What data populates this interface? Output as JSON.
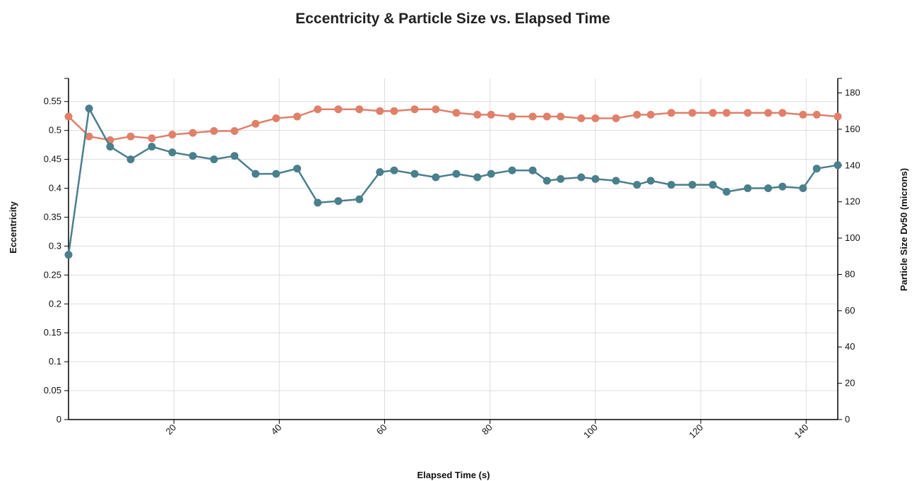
{
  "chart_data": {
    "type": "line",
    "title": "Eccentricity & Particle Size vs. Elapsed Time",
    "xlabel": "Elapsed Time (s)",
    "ylabel_left": "Eccentricity",
    "ylabel_right": "Particle Size Dv50 (microns)",
    "xlim": [
      0,
      146
    ],
    "ylim_left": [
      0,
      0.59
    ],
    "ylim_right": [
      0,
      188
    ],
    "x_ticks": [
      20,
      40,
      60,
      80,
      100,
      120,
      140
    ],
    "x_tick_labels": [
      "20",
      "40",
      "60",
      "80",
      "100",
      "120",
      "140"
    ],
    "y_left_ticks": [
      0,
      0.05,
      0.1,
      0.15,
      0.2,
      0.25,
      0.3,
      0.35,
      0.4,
      0.45,
      0.5,
      0.55
    ],
    "y_left_tick_labels": [
      "0",
      "0.05",
      "0.1",
      "0.15",
      "0.2",
      "0.25",
      "0.3",
      "0.35",
      "0.4",
      "0.45",
      "0.5",
      "0.55"
    ],
    "y_right_ticks": [
      0,
      20,
      40,
      60,
      80,
      100,
      120,
      140,
      160,
      180
    ],
    "y_right_tick_labels": [
      "0",
      "20",
      "40",
      "60",
      "80",
      "100",
      "120",
      "140",
      "160",
      "180"
    ],
    "grid": true,
    "series": [
      {
        "axis": "left",
        "color": "#4a7f8c",
        "x": [
          0,
          3.9,
          7.9,
          11.8,
          15.8,
          19.7,
          23.6,
          27.6,
          31.5,
          35.5,
          39.4,
          43.4,
          47.3,
          51.2,
          55.2,
          59.1,
          61.8,
          65.7,
          69.7,
          73.6,
          77.6,
          80.2,
          84.2,
          88.1,
          90.8,
          93.4,
          97.3,
          100.0,
          103.9,
          107.9,
          110.5,
          114.4,
          118.4,
          122.3,
          124.9,
          128.9,
          132.8,
          135.5,
          139.4,
          142.0,
          146.0
        ],
        "values": [
          0.285,
          0.538,
          0.472,
          0.45,
          0.472,
          0.462,
          0.456,
          0.45,
          0.456,
          0.425,
          0.425,
          0.434,
          0.375,
          0.378,
          0.381,
          0.428,
          0.431,
          0.425,
          0.419,
          0.425,
          0.419,
          0.425,
          0.431,
          0.431,
          0.413,
          0.416,
          0.419,
          0.416,
          0.413,
          0.406,
          0.413,
          0.406,
          0.406,
          0.406,
          0.394,
          0.4,
          0.4,
          0.403,
          0.4,
          0.434,
          0.44
        ]
      },
      {
        "axis": "right",
        "color": "#e0806a",
        "x": [
          0,
          3.9,
          7.9,
          11.8,
          15.8,
          19.7,
          23.6,
          27.6,
          31.5,
          35.5,
          39.4,
          43.4,
          47.3,
          51.2,
          55.2,
          59.1,
          61.8,
          65.7,
          69.7,
          73.6,
          77.6,
          80.2,
          84.2,
          88.1,
          90.8,
          93.4,
          97.3,
          100.0,
          103.9,
          107.9,
          110.5,
          114.4,
          118.4,
          122.3,
          124.9,
          128.9,
          132.8,
          135.5,
          139.4,
          142.0,
          146.0
        ],
        "values": [
          167,
          156,
          154,
          156,
          155,
          157,
          158,
          159,
          159,
          163,
          166,
          167,
          171,
          171,
          171,
          170,
          170,
          171,
          171,
          169,
          168,
          168,
          167,
          167,
          167,
          167,
          166,
          166,
          166,
          168,
          168,
          169,
          169,
          169,
          169,
          169,
          169,
          169,
          168,
          168,
          167
        ]
      }
    ]
  }
}
